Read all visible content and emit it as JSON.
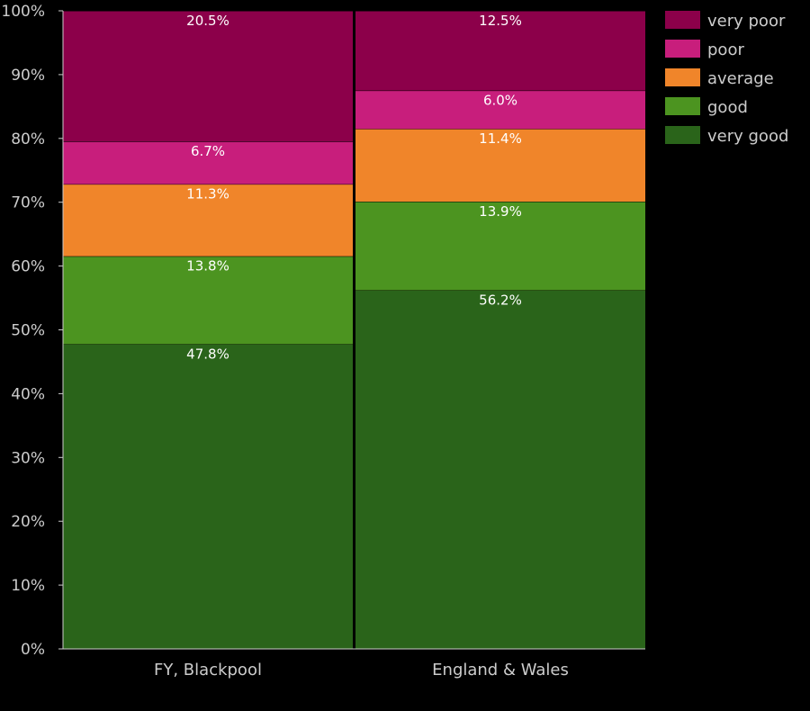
{
  "chart_data": {
    "type": "bar",
    "stacked": true,
    "categories": [
      "FY, Blackpool",
      "England & Wales"
    ],
    "series": [
      {
        "name": "very good",
        "color": "#2a641a",
        "values": [
          47.8,
          56.2
        ]
      },
      {
        "name": "good",
        "color": "#4c9420",
        "values": [
          13.8,
          13.9
        ]
      },
      {
        "name": "average",
        "color": "#f0852a",
        "values": [
          11.3,
          11.4
        ]
      },
      {
        "name": "poor",
        "color": "#c81e7c",
        "values": [
          6.7,
          6.0
        ]
      },
      {
        "name": "very poor",
        "color": "#8c004a",
        "values": [
          20.5,
          12.5
        ]
      }
    ],
    "data_labels": [
      [
        "47.8%",
        "56.2%"
      ],
      [
        "13.8%",
        "13.9%"
      ],
      [
        "11.3%",
        "11.4%"
      ],
      [
        "6.7%",
        "6.0%"
      ],
      [
        "20.5%",
        "12.5%"
      ]
    ],
    "y_ticks": [
      0,
      10,
      20,
      30,
      40,
      50,
      60,
      70,
      80,
      90,
      100
    ],
    "y_tick_labels": [
      "0%",
      "10%",
      "20%",
      "30%",
      "40%",
      "50%",
      "60%",
      "70%",
      "80%",
      "90%",
      "100%"
    ],
    "ylim": [
      0,
      100
    ],
    "legend_order": [
      "very poor",
      "poor",
      "average",
      "good",
      "very good"
    ],
    "legend_position": "top-right",
    "grid": false,
    "background": "#000000"
  }
}
